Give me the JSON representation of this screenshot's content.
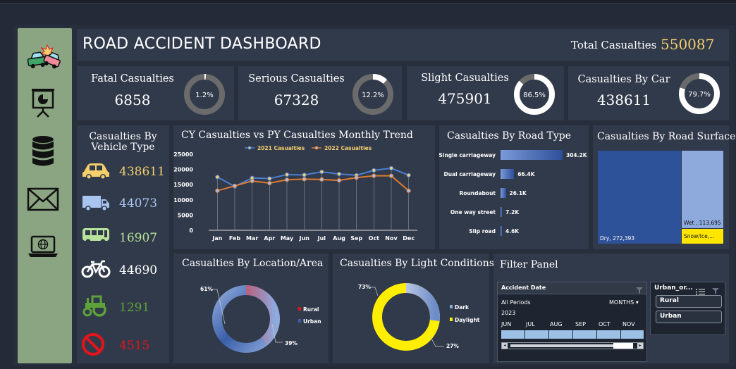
{
  "dashboard": {
    "title": "ROAD ACCIDENT DASHBOARD",
    "total_label": "Total Casualties",
    "total_value": "550087"
  },
  "sidebar": {
    "items": [
      "car-crash-icon",
      "presentation-icon",
      "database-icon",
      "mail-icon",
      "laptop-globe-icon"
    ]
  },
  "kpis": [
    {
      "title": "Fatal Casualties",
      "value": "6858",
      "pct_label": "1.2%",
      "pct": 1.2
    },
    {
      "title": "Serious Casualties",
      "value": "67328",
      "pct_label": "12.2%",
      "pct": 12.2
    },
    {
      "title": "Slight Casualties",
      "value": "475901",
      "pct_label": "86.5%",
      "pct": 86.5
    },
    {
      "title": "Casualties By Car",
      "value": "438611",
      "pct_label": "79.7%",
      "pct": 79.7
    }
  ],
  "vehicle": {
    "title_line1": "Casualties By",
    "title_line2": "Vehicle Type",
    "items": [
      {
        "icon": "car-icon",
        "value": "438611",
        "color": "#f6cf6d"
      },
      {
        "icon": "van-icon",
        "value": "44073",
        "color": "#a9c4ef"
      },
      {
        "icon": "bus-icon",
        "value": "16907",
        "color": "#b7e39a"
      },
      {
        "icon": "bicycle-icon",
        "value": "44690",
        "color": "#ffffff"
      },
      {
        "icon": "tractor-icon",
        "value": "1291",
        "color": "#5ea23a"
      },
      {
        "icon": "no-entry-icon",
        "value": "4515",
        "color": "#e3141b"
      }
    ]
  },
  "trend": {
    "title": "CY Casualties vs PY Casualties Monthly Trend",
    "chart_data": {
      "type": "line",
      "categories": [
        "Jan",
        "Feb",
        "Mar",
        "Apr",
        "May",
        "Jun",
        "Jul",
        "Aug",
        "Sep",
        "Oct",
        "Nov",
        "Dec"
      ],
      "series": [
        {
          "name": "2021 Casualties",
          "color": "#4a7fd4",
          "values": [
            17500,
            14400,
            17200,
            17000,
            18300,
            18200,
            19200,
            18500,
            18100,
            19700,
            20400,
            18100
          ]
        },
        {
          "name": "2022 Casualties",
          "color": "#e07a2e",
          "values": [
            13000,
            14600,
            16200,
            15500,
            16600,
            16800,
            16700,
            16400,
            17300,
            17900,
            17900,
            13000
          ]
        }
      ],
      "yticks": [
        "25000",
        "20000",
        "15000",
        "10000",
        "5000",
        "0"
      ],
      "ylim": [
        0,
        25000
      ]
    }
  },
  "road_type": {
    "title": "Casualties By Road Type",
    "chart_data": {
      "type": "bar",
      "categories": [
        "Single carriageway",
        "Dual carriageway",
        "Roundabout",
        "One way street",
        "Slip road"
      ],
      "values": [
        304200,
        66400,
        26100,
        7200,
        4600
      ],
      "labels": [
        "304.2K",
        "66.4K",
        "26.1K",
        "7.2K",
        "4.6K"
      ]
    }
  },
  "road_surface": {
    "title": "Casualties By Road Surface",
    "chart_data": {
      "type": "treemap",
      "items": [
        {
          "label": "Dry, 272,393",
          "value": 272393,
          "color": "#2e5299"
        },
        {
          "label": "Wet , 113,695",
          "value": 113695,
          "color": "#8ea9dc"
        },
        {
          "label": "Snow/Ice,...",
          "value": 0,
          "color": "#ffe600"
        }
      ]
    }
  },
  "location": {
    "title": "Casualties By Location/Area",
    "chart_data": {
      "type": "pie",
      "categories": [
        "Rural",
        "Urban"
      ],
      "values": [
        39,
        61
      ],
      "labels": [
        "39%",
        "61%"
      ],
      "colors": [
        "#e3141b",
        "#3a5fa8"
      ]
    }
  },
  "light": {
    "title": "Casualties By Light Conditions",
    "chart_data": {
      "type": "pie",
      "categories": [
        "Dark",
        "Daylight"
      ],
      "values": [
        27,
        73
      ],
      "labels": [
        "27%",
        "73%"
      ],
      "colors": [
        "#8ea9dc",
        "#ffee00"
      ]
    }
  },
  "filter": {
    "title": "Filter Panel",
    "date_slicer": {
      "header": "Accident  Date",
      "periods": "All Periods",
      "unit": "MONTHS",
      "year": "2023",
      "months": [
        "JUN",
        "JUL",
        "AUG",
        "SEP",
        "OCT",
        "NOV"
      ]
    },
    "area_slicer": {
      "header": "Urban_or...",
      "options": [
        "Rural",
        "Urban"
      ]
    }
  }
}
